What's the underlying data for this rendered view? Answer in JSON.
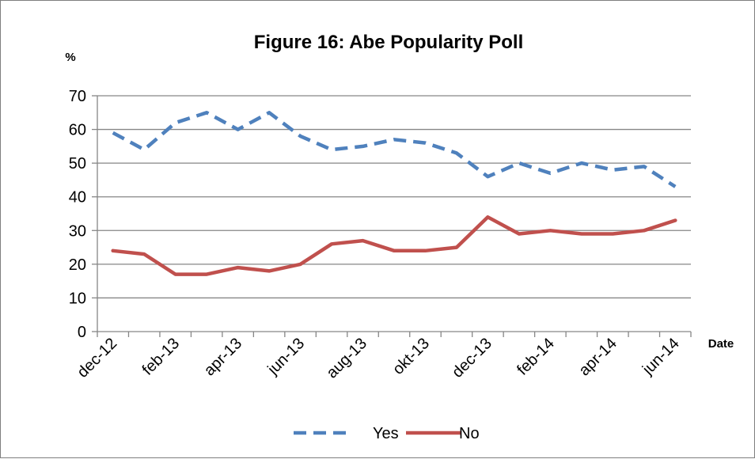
{
  "chart_data": {
    "type": "line",
    "title": "Figure 16: Abe Popularity Poll",
    "ylabel": "%",
    "xlabel": "Date",
    "ylim": [
      0,
      70
    ],
    "yticks": [
      0,
      10,
      20,
      30,
      40,
      50,
      60,
      70
    ],
    "grid": "horizontal",
    "legend_position": "bottom",
    "x": [
      "dec-12",
      "jan-13",
      "feb-13",
      "mar-13",
      "apr-13",
      "mai-13",
      "jun-13",
      "jul-13",
      "aug-13",
      "sep-13",
      "okt-13",
      "nov-13",
      "dec-13",
      "jan-14",
      "feb-14",
      "mar-14",
      "apr-14",
      "mai-14",
      "jun-14"
    ],
    "x_tick_labels": [
      "dec-12",
      "feb-13",
      "apr-13",
      "jun-13",
      "aug-13",
      "okt-13",
      "dec-13",
      "feb-14",
      "apr-14",
      "jun-14"
    ],
    "series": [
      {
        "name": "Yes",
        "color": "#4f81bd",
        "dashed": true,
        "values": [
          59,
          54,
          62,
          65,
          60,
          65,
          58,
          54,
          55,
          57,
          56,
          53,
          46,
          50,
          47,
          50,
          48,
          49,
          43
        ]
      },
      {
        "name": "No",
        "color": "#c0504d",
        "dashed": false,
        "values": [
          24,
          23,
          17,
          17,
          19,
          18,
          20,
          26,
          27,
          24,
          24,
          25,
          34,
          29,
          30,
          29,
          29,
          30,
          33
        ]
      }
    ]
  }
}
